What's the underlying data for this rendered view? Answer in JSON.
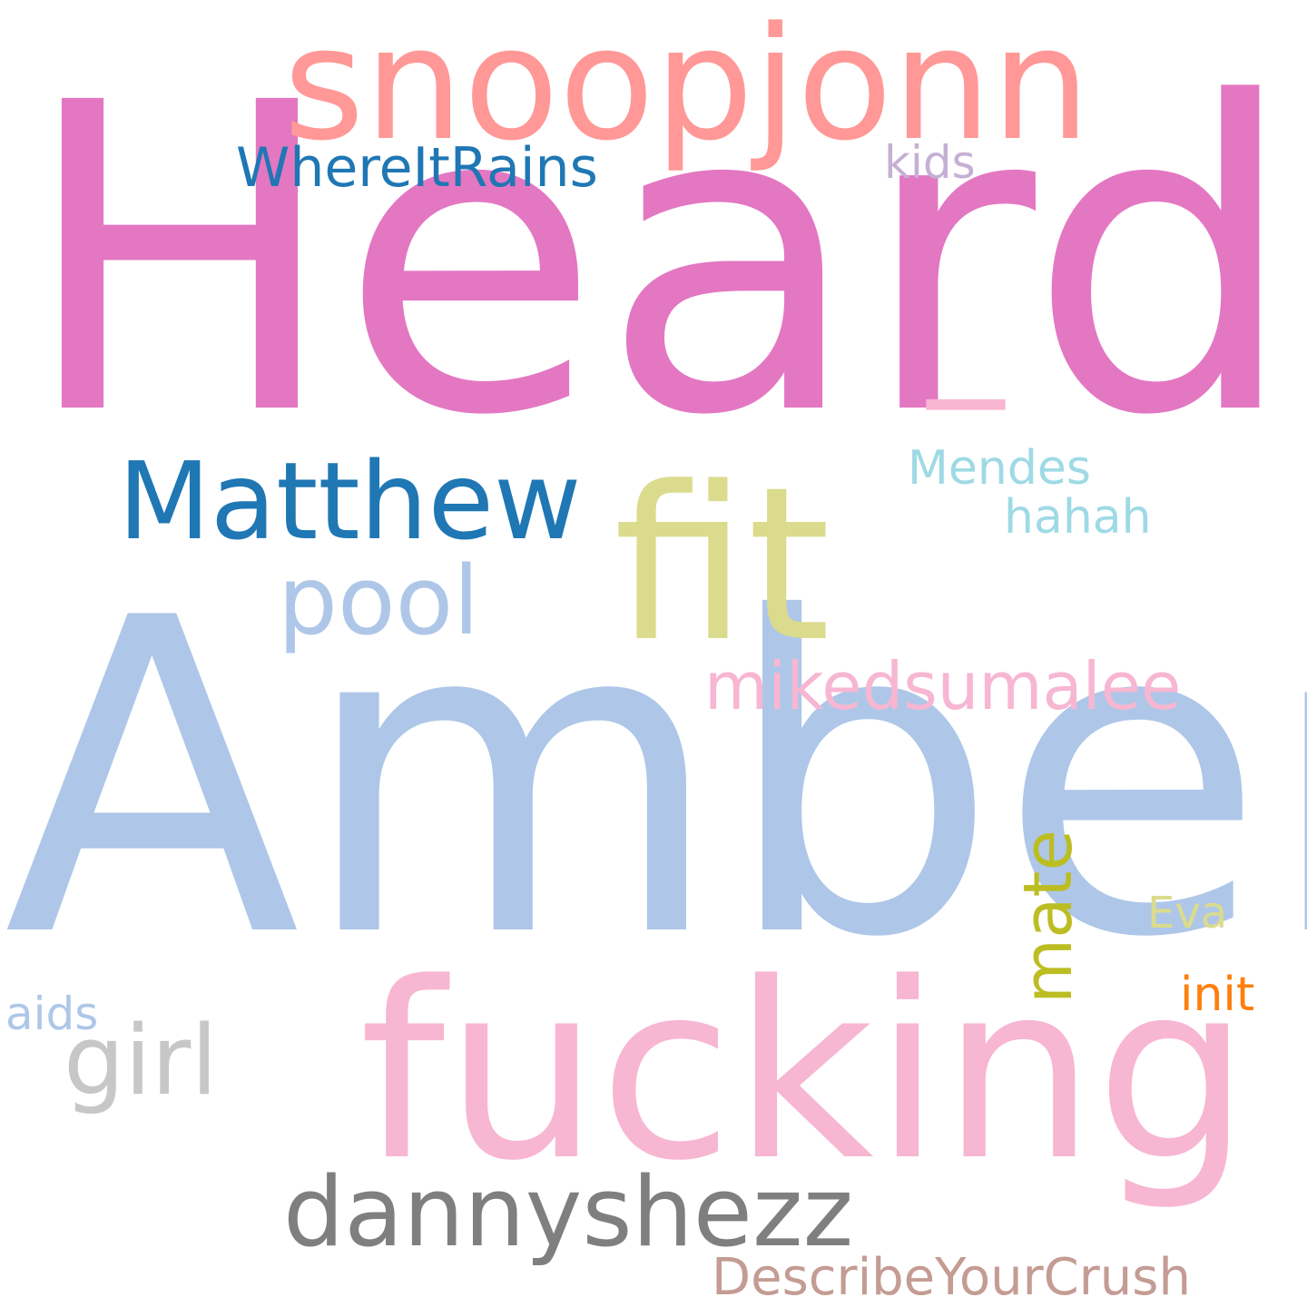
{
  "word_cloud": {
    "words": [
      {
        "text": "Heard",
        "color": "#e377c2"
      },
      {
        "text": "Amber",
        "color": "#aec7e8"
      },
      {
        "text": "fucking",
        "color": "#f7b6d2"
      },
      {
        "text": "fit",
        "color": "#dbdb8d"
      },
      {
        "text": "snoopjonn",
        "color": "#ff9896"
      },
      {
        "text": "Matthew",
        "color": "#1f77b4"
      },
      {
        "text": "dannyshezz",
        "color": "#7f7f7f"
      },
      {
        "text": "pool",
        "color": "#aec7e8"
      },
      {
        "text": "girl",
        "color": "#c7c7c7"
      },
      {
        "text": "mikedsumalee",
        "color": "#f7b6d2"
      },
      {
        "text": "WhereItRains",
        "color": "#1f77b4"
      },
      {
        "text": "mate",
        "color": "#bcbd22"
      },
      {
        "text": "DescribeYourCrush",
        "color": "#c49c94"
      },
      {
        "text": "Mendes",
        "color": "#9edae5"
      },
      {
        "text": "hahah",
        "color": "#9edae5"
      },
      {
        "text": "kids",
        "color": "#c5b0d5"
      },
      {
        "text": "Eva",
        "color": "#dbdb8d"
      },
      {
        "text": "init",
        "color": "#ff7f0e"
      },
      {
        "text": "aids",
        "color": "#aec7e8"
      },
      {
        "text": "_",
        "color": "#f7b6d2"
      }
    ]
  }
}
